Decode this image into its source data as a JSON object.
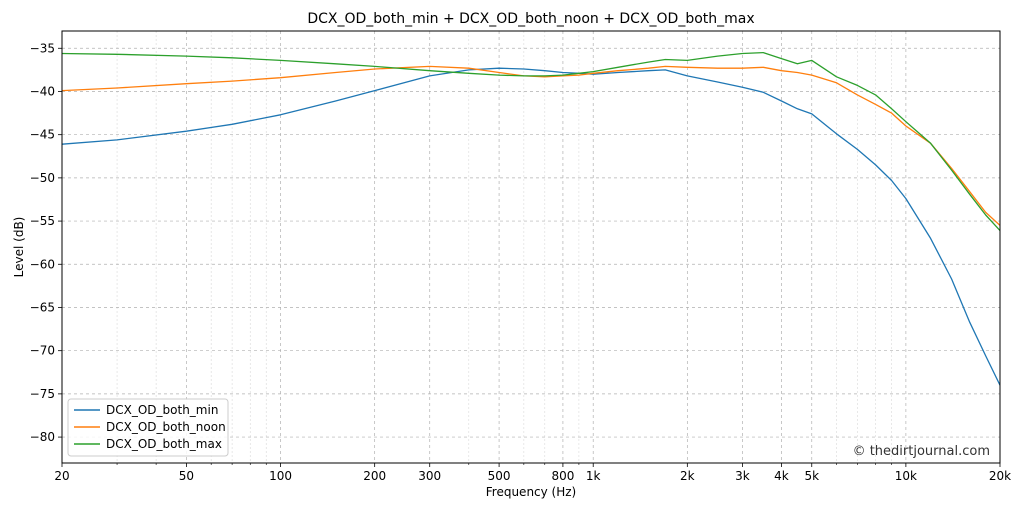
{
  "chart_data": {
    "type": "line",
    "title": "DCX_OD_both_min + DCX_OD_both_noon + DCX_OD_both_max",
    "xlabel": "Frequency (Hz)",
    "ylabel": "Level (dB)",
    "x_scale": "log",
    "xlim": [
      20,
      20000
    ],
    "ylim": [
      -83,
      -33
    ],
    "grid": true,
    "legend_position": "lower-left",
    "credit": "© thedirtjournal.com",
    "x_ticks": [
      {
        "value": 20,
        "label": "20"
      },
      {
        "value": 50,
        "label": "50"
      },
      {
        "value": 100,
        "label": "100"
      },
      {
        "value": 200,
        "label": "200"
      },
      {
        "value": 300,
        "label": "300"
      },
      {
        "value": 500,
        "label": "500"
      },
      {
        "value": 800,
        "label": "800"
      },
      {
        "value": 1000,
        "label": "1k"
      },
      {
        "value": 2000,
        "label": "2k"
      },
      {
        "value": 3000,
        "label": "3k"
      },
      {
        "value": 4000,
        "label": "4k"
      },
      {
        "value": 5000,
        "label": "5k"
      },
      {
        "value": 10000,
        "label": "10k"
      },
      {
        "value": 20000,
        "label": "20k"
      }
    ],
    "y_ticks": [
      {
        "value": -35,
        "label": "−35"
      },
      {
        "value": -40,
        "label": "−40"
      },
      {
        "value": -45,
        "label": "−45"
      },
      {
        "value": -50,
        "label": "−50"
      },
      {
        "value": -55,
        "label": "−55"
      },
      {
        "value": -60,
        "label": "−60"
      },
      {
        "value": -65,
        "label": "−65"
      },
      {
        "value": -70,
        "label": "−70"
      },
      {
        "value": -75,
        "label": "−75"
      },
      {
        "value": -80,
        "label": "−80"
      }
    ],
    "series": [
      {
        "name": "DCX_OD_both_min",
        "color": "#1f77b4",
        "x": [
          20,
          30,
          50,
          70,
          100,
          150,
          200,
          300,
          400,
          500,
          600,
          700,
          800,
          900,
          1000,
          1200,
          1500,
          1700,
          2000,
          2500,
          3000,
          3500,
          4000,
          4500,
          5000,
          6000,
          7000,
          8000,
          9000,
          10000,
          12000,
          14000,
          16000,
          18000,
          20000
        ],
        "y": [
          -46.1,
          -45.6,
          -44.6,
          -43.8,
          -42.7,
          -41.1,
          -39.9,
          -38.2,
          -37.5,
          -37.3,
          -37.4,
          -37.6,
          -37.8,
          -37.9,
          -38.0,
          -37.8,
          -37.6,
          -37.5,
          -38.2,
          -38.9,
          -39.5,
          -40.1,
          -41.1,
          -42.0,
          -42.6,
          -44.9,
          -46.7,
          -48.5,
          -50.3,
          -52.4,
          -57.0,
          -61.7,
          -66.7,
          -70.6,
          -74.0
        ]
      },
      {
        "name": "DCX_OD_both_noon",
        "color": "#ff7f0e",
        "x": [
          20,
          30,
          50,
          70,
          100,
          150,
          200,
          300,
          400,
          500,
          600,
          700,
          800,
          900,
          1000,
          1200,
          1500,
          1700,
          2000,
          2500,
          3000,
          3500,
          4000,
          4500,
          5000,
          6000,
          7000,
          8000,
          9000,
          10000,
          12000,
          14000,
          16000,
          18000,
          20000
        ],
        "y": [
          -39.9,
          -39.6,
          -39.1,
          -38.8,
          -38.4,
          -37.8,
          -37.4,
          -37.1,
          -37.3,
          -37.8,
          -38.2,
          -38.3,
          -38.2,
          -38.1,
          -37.9,
          -37.6,
          -37.3,
          -37.1,
          -37.2,
          -37.3,
          -37.3,
          -37.2,
          -37.6,
          -37.8,
          -38.1,
          -39.0,
          -40.4,
          -41.5,
          -42.5,
          -44.0,
          -46.0,
          -48.9,
          -51.6,
          -54.0,
          -55.5
        ]
      },
      {
        "name": "DCX_OD_both_max",
        "color": "#2ca02c",
        "x": [
          20,
          30,
          50,
          70,
          100,
          150,
          200,
          300,
          400,
          500,
          600,
          700,
          800,
          900,
          1000,
          1200,
          1500,
          1700,
          2000,
          2500,
          3000,
          3500,
          4000,
          4500,
          5000,
          6000,
          7000,
          8000,
          9000,
          10000,
          12000,
          14000,
          16000,
          18000,
          20000
        ],
        "y": [
          -35.6,
          -35.7,
          -35.9,
          -36.1,
          -36.4,
          -36.8,
          -37.1,
          -37.6,
          -37.9,
          -38.1,
          -38.2,
          -38.2,
          -38.1,
          -37.9,
          -37.7,
          -37.2,
          -36.6,
          -36.3,
          -36.4,
          -35.9,
          -35.6,
          -35.5,
          -36.2,
          -36.8,
          -36.4,
          -38.3,
          -39.3,
          -40.4,
          -42.0,
          -43.5,
          -46.0,
          -49.1,
          -51.9,
          -54.3,
          -56.1
        ]
      }
    ]
  }
}
